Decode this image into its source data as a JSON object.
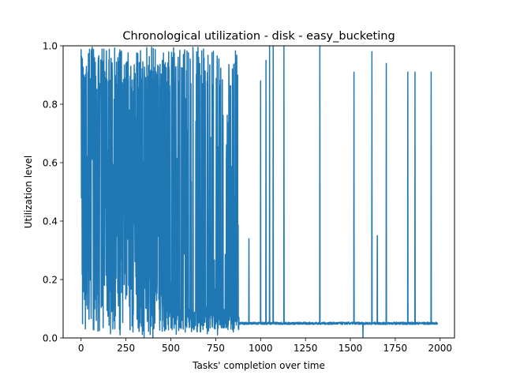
{
  "chart_data": {
    "type": "line",
    "title": "Chronological utilization - disk - easy_bucketing",
    "xlabel": "Tasks' completion over time",
    "ylabel": "Utilization level",
    "xlim": [
      -100,
      2080
    ],
    "ylim": [
      0.0,
      1.0
    ],
    "x_ticks": [
      0,
      250,
      500,
      750,
      1000,
      1250,
      1500,
      1750,
      2000
    ],
    "y_ticks": [
      0.0,
      0.2,
      0.4,
      0.6,
      0.8,
      1.0
    ],
    "x_tick_labels": [
      "0",
      "250",
      "500",
      "750",
      "1000",
      "1250",
      "1500",
      "1750",
      "2000"
    ],
    "y_tick_labels": [
      "0.0",
      "0.2",
      "0.4",
      "0.6",
      "0.8",
      "1.0"
    ],
    "grid": false,
    "legend": "none",
    "n_points": 1986,
    "baseline": 0.05,
    "series": [
      {
        "color": "#1f77b4",
        "x_range": [
          0,
          1985
        ],
        "dense_region_end": 880,
        "spikes": [
          {
            "x": 935,
            "y": 0.34
          },
          {
            "x": 1000,
            "y": 0.88
          },
          {
            "x": 1030,
            "y": 0.95
          },
          {
            "x": 1050,
            "y": 1.0
          },
          {
            "x": 1070,
            "y": 1.0
          },
          {
            "x": 1130,
            "y": 1.0
          },
          {
            "x": 1330,
            "y": 1.0
          },
          {
            "x": 1520,
            "y": 0.91
          },
          {
            "x": 1620,
            "y": 0.98
          },
          {
            "x": 1650,
            "y": 0.35
          },
          {
            "x": 1700,
            "y": 0.94
          },
          {
            "x": 1820,
            "y": 0.91
          },
          {
            "x": 1860,
            "y": 0.91
          },
          {
            "x": 1950,
            "y": 0.91
          }
        ],
        "dips": [
          {
            "x": 400,
            "y": 0.0
          },
          {
            "x": 1570,
            "y": 0.0
          }
        ]
      }
    ]
  }
}
